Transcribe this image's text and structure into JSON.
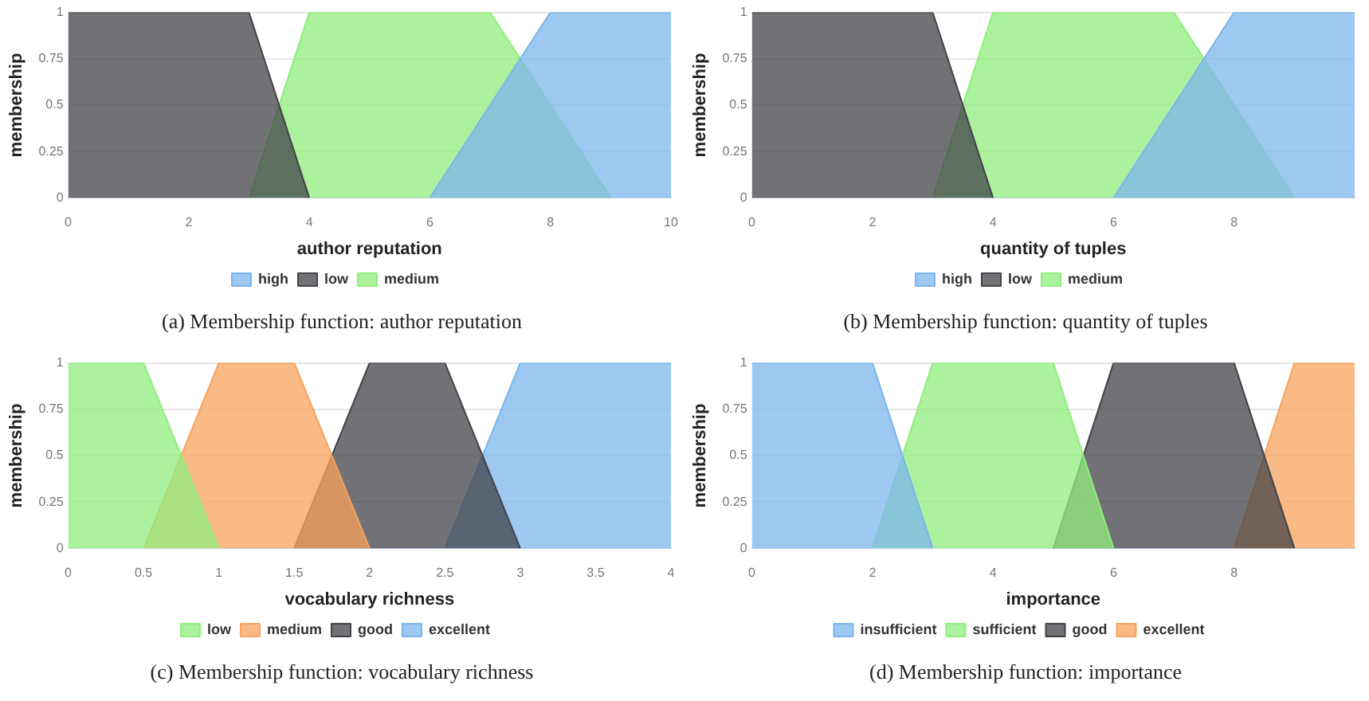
{
  "chart_data": [
    {
      "type": "area",
      "xlabel": "author reputation",
      "ylabel": "membership",
      "annotations": [
        "(a) Membership function: author reputation"
      ],
      "xlim": [
        0,
        10
      ],
      "xticks": [
        0,
        2,
        4,
        6,
        8,
        10
      ],
      "ylim": [
        0,
        1
      ],
      "yticks": [
        0,
        0.25,
        0.5,
        0.75,
        1
      ],
      "grid": "y",
      "legend": "bottom",
      "marker": "none",
      "series": [
        {
          "name": "high",
          "color": "#7cb5ec",
          "x": [
            6,
            8,
            10
          ],
          "values": [
            0,
            1,
            1
          ]
        },
        {
          "name": "low",
          "color": "#434348",
          "x": [
            0,
            3,
            4
          ],
          "values": [
            1,
            1,
            0
          ]
        },
        {
          "name": "medium",
          "color": "#90ed7d",
          "x": [
            3,
            4,
            7,
            9
          ],
          "values": [
            0,
            1,
            1,
            0
          ]
        }
      ]
    },
    {
      "type": "area",
      "xlabel": "quantity of tuples",
      "ylabel": "membership",
      "annotations": [
        "(b) Membership function: quantity of tuples"
      ],
      "xlim": [
        0,
        10
      ],
      "xticks": [
        0,
        2,
        4,
        6,
        8
      ],
      "ylim": [
        0,
        1
      ],
      "yticks": [
        0,
        0.25,
        0.5,
        0.75,
        1
      ],
      "grid": "y",
      "legend": "bottom",
      "marker": "none",
      "series": [
        {
          "name": "high",
          "color": "#7cb5ec",
          "x": [
            6,
            8,
            10
          ],
          "values": [
            0,
            1,
            1
          ]
        },
        {
          "name": "low",
          "color": "#434348",
          "x": [
            0,
            3,
            4
          ],
          "values": [
            1,
            1,
            0
          ]
        },
        {
          "name": "medium",
          "color": "#90ed7d",
          "x": [
            3,
            4,
            7,
            9
          ],
          "values": [
            0,
            1,
            1,
            0
          ]
        }
      ]
    },
    {
      "type": "area",
      "xlabel": "vocabulary richness",
      "ylabel": "membership",
      "annotations": [
        "(c) Membership function: vocabulary richness"
      ],
      "xlim": [
        0,
        4
      ],
      "xticks": [
        0,
        0.5,
        1,
        1.5,
        2,
        2.5,
        3,
        3.5,
        4
      ],
      "ylim": [
        0,
        1
      ],
      "yticks": [
        0,
        0.25,
        0.5,
        0.75,
        1
      ],
      "grid": "y",
      "legend": "bottom",
      "marker": "none",
      "series": [
        {
          "name": "low",
          "color": "#90ed7d",
          "x": [
            0,
            0.5,
            1
          ],
          "values": [
            1,
            1,
            0
          ]
        },
        {
          "name": "medium",
          "color": "#f7a35c",
          "x": [
            0.5,
            1,
            1.5,
            2
          ],
          "values": [
            0,
            1,
            1,
            0
          ]
        },
        {
          "name": "good",
          "color": "#434348",
          "x": [
            1.5,
            2,
            2.5,
            3
          ],
          "values": [
            0,
            1,
            1,
            0
          ]
        },
        {
          "name": "excellent",
          "color": "#7cb5ec",
          "x": [
            2.5,
            3,
            4
          ],
          "values": [
            0,
            1,
            1
          ]
        }
      ]
    },
    {
      "type": "area",
      "xlabel": "importance",
      "ylabel": "membership",
      "annotations": [
        "(d) Membership function: importance"
      ],
      "xlim": [
        0,
        10
      ],
      "xticks": [
        0,
        2,
        4,
        6,
        8
      ],
      "ylim": [
        0,
        1
      ],
      "yticks": [
        0,
        0.25,
        0.5,
        0.75,
        1
      ],
      "grid": "y",
      "legend": "bottom",
      "marker": "none",
      "series": [
        {
          "name": "insufficient",
          "color": "#7cb5ec",
          "x": [
            0,
            2,
            3
          ],
          "values": [
            1,
            1,
            0
          ]
        },
        {
          "name": "sufficient",
          "color": "#90ed7d",
          "x": [
            2,
            3,
            5,
            6
          ],
          "values": [
            0,
            1,
            1,
            0
          ]
        },
        {
          "name": "good",
          "color": "#434348",
          "x": [
            5,
            6,
            8,
            9
          ],
          "values": [
            0,
            1,
            1,
            0
          ]
        },
        {
          "name": "excellent",
          "color": "#f7a35c",
          "x": [
            8,
            9,
            10
          ],
          "values": [
            0,
            1,
            1
          ]
        }
      ]
    }
  ]
}
